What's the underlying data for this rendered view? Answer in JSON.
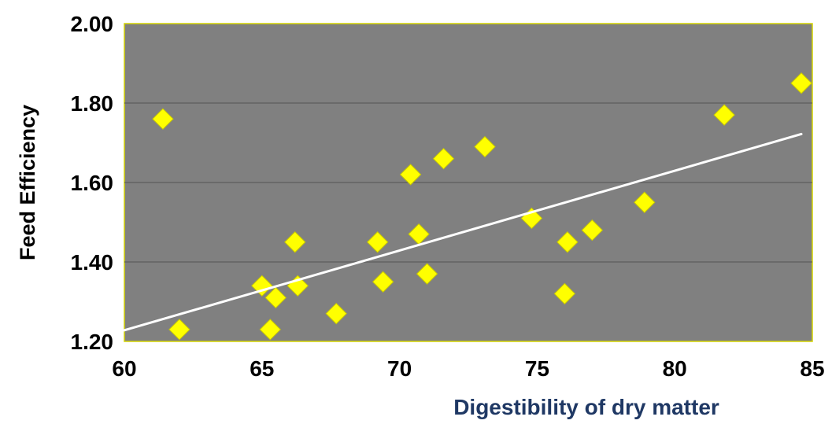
{
  "chart_data": {
    "type": "scatter",
    "xlabel": "Digestibility of dry matter",
    "ylabel": "Feed Efficiency",
    "xlim": [
      60,
      85
    ],
    "ylim": [
      1.2,
      2.0
    ],
    "x_ticks": [
      "60",
      "65",
      "70",
      "75",
      "80",
      "85"
    ],
    "y_ticks": [
      "1.20",
      "1.40",
      "1.60",
      "1.80",
      "2.00"
    ],
    "grid": "horizontal",
    "series": [
      {
        "points": [
          {
            "x": 61.4,
            "y": 1.76
          },
          {
            "x": 62.0,
            "y": 1.23
          },
          {
            "x": 65.0,
            "y": 1.34
          },
          {
            "x": 65.3,
            "y": 1.23
          },
          {
            "x": 65.5,
            "y": 1.31
          },
          {
            "x": 66.2,
            "y": 1.45
          },
          {
            "x": 66.3,
            "y": 1.34
          },
          {
            "x": 67.7,
            "y": 1.27
          },
          {
            "x": 69.2,
            "y": 1.45
          },
          {
            "x": 69.4,
            "y": 1.35
          },
          {
            "x": 70.4,
            "y": 1.62
          },
          {
            "x": 70.7,
            "y": 1.47
          },
          {
            "x": 71.0,
            "y": 1.37
          },
          {
            "x": 71.6,
            "y": 1.66
          },
          {
            "x": 73.1,
            "y": 1.69
          },
          {
            "x": 74.8,
            "y": 1.51
          },
          {
            "x": 76.0,
            "y": 1.32
          },
          {
            "x": 76.1,
            "y": 1.45
          },
          {
            "x": 77.0,
            "y": 1.48
          },
          {
            "x": 78.9,
            "y": 1.55
          },
          {
            "x": 81.8,
            "y": 1.77
          },
          {
            "x": 84.6,
            "y": 1.85
          }
        ]
      }
    ],
    "trendline": {
      "x": [
        60,
        84.6
      ],
      "y": [
        1.228,
        1.722
      ]
    },
    "colors": {
      "plot_background": "#808080",
      "marker": "#ffff00",
      "marker_edge": "#c8c800",
      "trendline": "#ffffff",
      "gridline": "#555555",
      "plot_border": "#d4d400",
      "xlabel_color": "#1f3864"
    }
  }
}
